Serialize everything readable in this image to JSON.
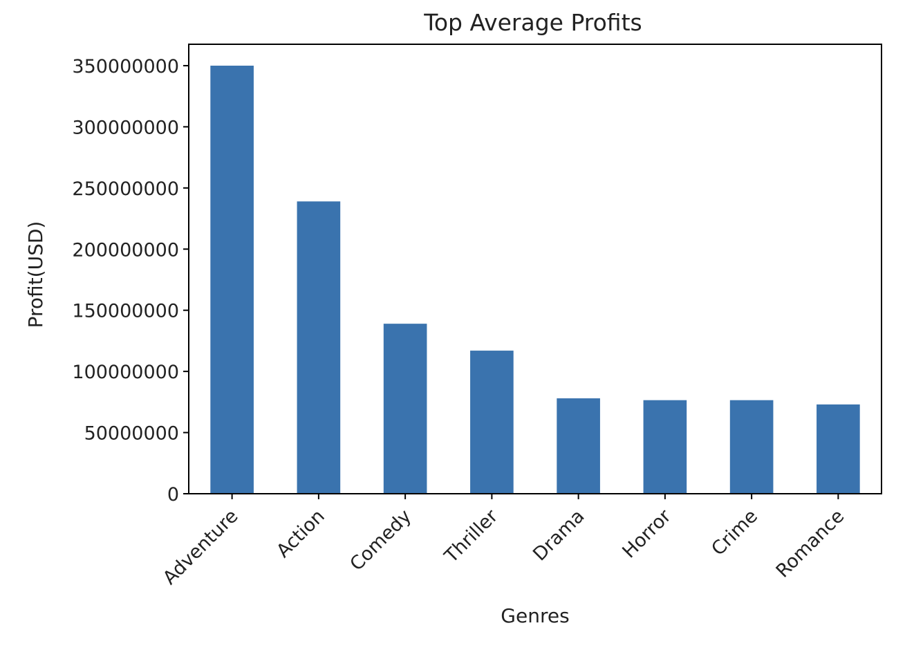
{
  "chart_data": {
    "type": "bar",
    "title": "Top Average Profits",
    "xlabel": "Genres",
    "ylabel": "Profit(USD)",
    "categories": [
      "Adventure",
      "Action",
      "Comedy",
      "Thriller",
      "Drama",
      "Horror",
      "Crime",
      "Romance"
    ],
    "values": [
      350000000,
      239000000,
      139000000,
      117000000,
      78000000,
      76500000,
      76500000,
      73000000
    ],
    "ylim": [
      0,
      367500000
    ],
    "yticks": [
      0,
      50000000,
      100000000,
      150000000,
      200000000,
      250000000,
      300000000,
      350000000
    ],
    "ytick_labels": [
      "0",
      "50000000",
      "100000000",
      "150000000",
      "200000000",
      "250000000",
      "300000000",
      "350000000"
    ],
    "grid": false,
    "legend": "none",
    "bar_color": "#3a73ae"
  }
}
